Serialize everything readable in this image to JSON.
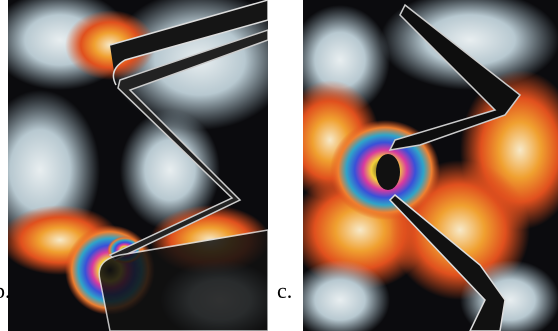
{
  "panels": [
    {
      "label": "b."
    },
    {
      "label": "c."
    }
  ]
}
